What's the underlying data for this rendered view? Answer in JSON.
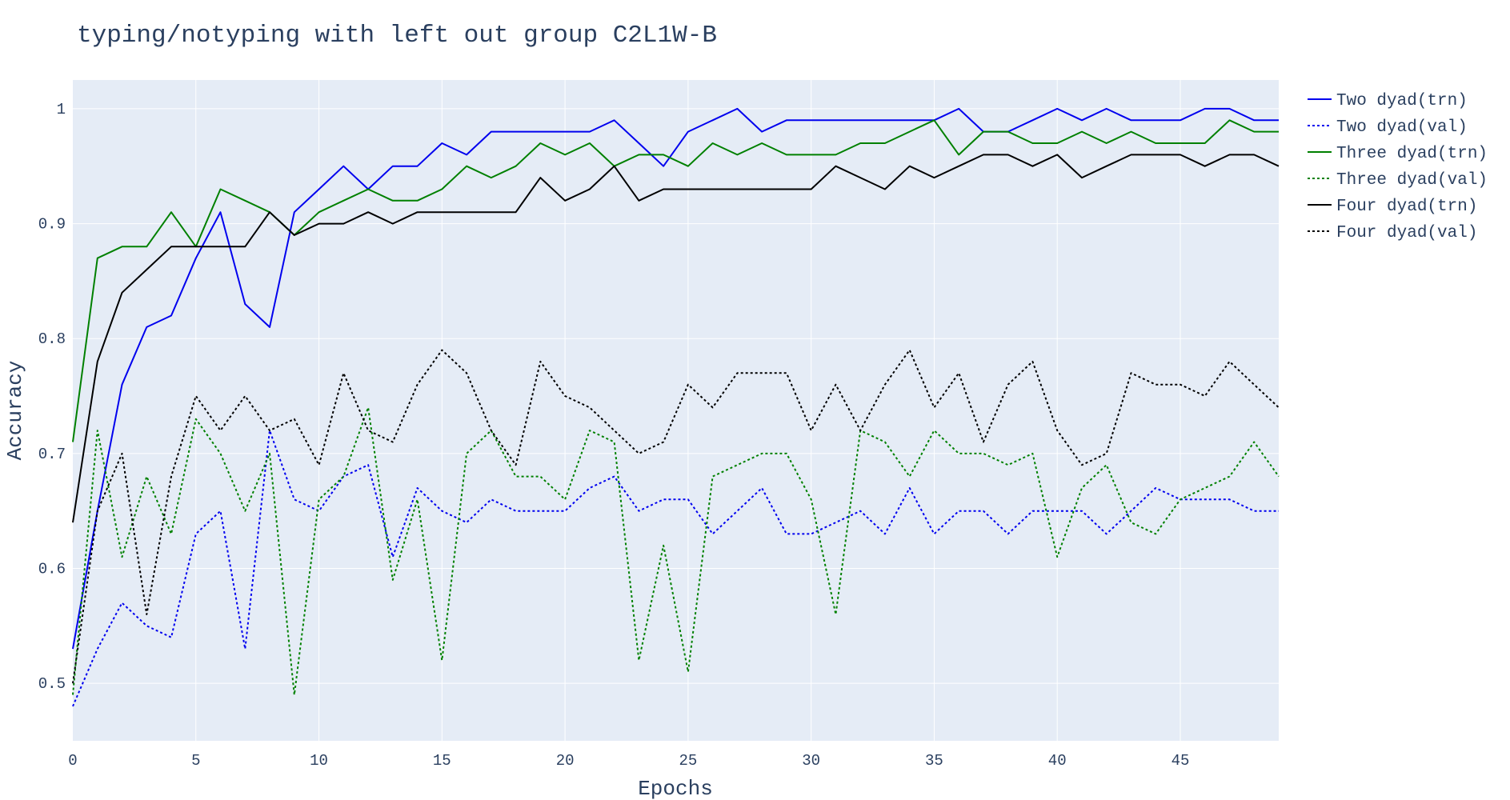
{
  "chart_data": {
    "type": "line",
    "title": "typing/notyping with left out group C2L1W-B",
    "xlabel": "Epochs",
    "ylabel": "Accuracy",
    "xlim": [
      0,
      49
    ],
    "ylim": [
      0.45,
      1.025
    ],
    "xticks": [
      0,
      5,
      10,
      15,
      20,
      25,
      30,
      35,
      40,
      45
    ],
    "xtick_labels": [
      "0",
      "5",
      "10",
      "15",
      "20",
      "25",
      "30",
      "35",
      "40",
      "45"
    ],
    "yticks": [
      0.5,
      0.6,
      0.7,
      0.8,
      0.9,
      1.0
    ],
    "ytick_labels": [
      "0.5",
      "0.6",
      "0.7",
      "0.8",
      "0.9",
      "1"
    ],
    "grid": true,
    "legend_position": "right",
    "plot_background": "#e5ecf6",
    "x": [
      0,
      1,
      2,
      3,
      4,
      5,
      6,
      7,
      8,
      9,
      10,
      11,
      12,
      13,
      14,
      15,
      16,
      17,
      18,
      19,
      20,
      21,
      22,
      23,
      24,
      25,
      26,
      27,
      28,
      29,
      30,
      31,
      32,
      33,
      34,
      35,
      36,
      37,
      38,
      39,
      40,
      41,
      42,
      43,
      44,
      45,
      46,
      47,
      48,
      49
    ],
    "series": [
      {
        "name": "Two dyad(trn)",
        "color": "#0000ee",
        "dash": "solid",
        "values": [
          0.53,
          0.65,
          0.76,
          0.81,
          0.82,
          0.87,
          0.91,
          0.83,
          0.81,
          0.91,
          0.93,
          0.95,
          0.93,
          0.95,
          0.95,
          0.97,
          0.96,
          0.98,
          0.98,
          0.98,
          0.98,
          0.98,
          0.99,
          0.97,
          0.95,
          0.98,
          0.99,
          1.0,
          0.98,
          0.99,
          0.99,
          0.99,
          0.99,
          0.99,
          0.99,
          0.99,
          1.0,
          0.98,
          0.98,
          0.99,
          1.0,
          0.99,
          1.0,
          0.99,
          0.99,
          0.99,
          1.0,
          1.0,
          0.99,
          0.99
        ]
      },
      {
        "name": "Two dyad(val)",
        "color": "#0000ee",
        "dash": "dot",
        "values": [
          0.48,
          0.53,
          0.57,
          0.55,
          0.54,
          0.63,
          0.65,
          0.53,
          0.72,
          0.66,
          0.65,
          0.68,
          0.69,
          0.61,
          0.67,
          0.65,
          0.64,
          0.66,
          0.65,
          0.65,
          0.65,
          0.67,
          0.68,
          0.65,
          0.66,
          0.66,
          0.63,
          0.65,
          0.67,
          0.63,
          0.63,
          0.64,
          0.65,
          0.63,
          0.67,
          0.63,
          0.65,
          0.65,
          0.63,
          0.65,
          0.65,
          0.65,
          0.63,
          0.65,
          0.67,
          0.66,
          0.66,
          0.66,
          0.65,
          0.65
        ]
      },
      {
        "name": "Three dyad(trn)",
        "color": "#008000",
        "dash": "solid",
        "values": [
          0.71,
          0.87,
          0.88,
          0.88,
          0.91,
          0.88,
          0.93,
          0.92,
          0.91,
          0.89,
          0.91,
          0.92,
          0.93,
          0.92,
          0.92,
          0.93,
          0.95,
          0.94,
          0.95,
          0.97,
          0.96,
          0.97,
          0.95,
          0.96,
          0.96,
          0.95,
          0.97,
          0.96,
          0.97,
          0.96,
          0.96,
          0.96,
          0.97,
          0.97,
          0.98,
          0.99,
          0.96,
          0.98,
          0.98,
          0.97,
          0.97,
          0.98,
          0.97,
          0.98,
          0.97,
          0.97,
          0.97,
          0.99,
          0.98,
          0.98
        ]
      },
      {
        "name": "Three dyad(val)",
        "color": "#008000",
        "dash": "dot",
        "values": [
          0.49,
          0.72,
          0.61,
          0.68,
          0.63,
          0.73,
          0.7,
          0.65,
          0.7,
          0.49,
          0.66,
          0.68,
          0.74,
          0.59,
          0.66,
          0.52,
          0.7,
          0.72,
          0.68,
          0.68,
          0.66,
          0.72,
          0.71,
          0.52,
          0.62,
          0.51,
          0.68,
          0.69,
          0.7,
          0.7,
          0.66,
          0.56,
          0.72,
          0.71,
          0.68,
          0.72,
          0.7,
          0.7,
          0.69,
          0.7,
          0.61,
          0.67,
          0.69,
          0.64,
          0.63,
          0.66,
          0.67,
          0.68,
          0.71,
          0.68
        ]
      },
      {
        "name": "Four dyad(trn)",
        "color": "#000000",
        "dash": "solid",
        "values": [
          0.64,
          0.78,
          0.84,
          0.86,
          0.88,
          0.88,
          0.88,
          0.88,
          0.91,
          0.89,
          0.9,
          0.9,
          0.91,
          0.9,
          0.91,
          0.91,
          0.91,
          0.91,
          0.91,
          0.94,
          0.92,
          0.93,
          0.95,
          0.92,
          0.93,
          0.93,
          0.93,
          0.93,
          0.93,
          0.93,
          0.93,
          0.95,
          0.94,
          0.93,
          0.95,
          0.94,
          0.95,
          0.96,
          0.96,
          0.95,
          0.96,
          0.94,
          0.95,
          0.96,
          0.96,
          0.96,
          0.95,
          0.96,
          0.96,
          0.95
        ]
      },
      {
        "name": "Four dyad(val)",
        "color": "#000000",
        "dash": "dot",
        "values": [
          0.5,
          0.65,
          0.7,
          0.56,
          0.68,
          0.75,
          0.72,
          0.75,
          0.72,
          0.73,
          0.69,
          0.77,
          0.72,
          0.71,
          0.76,
          0.79,
          0.77,
          0.72,
          0.69,
          0.78,
          0.75,
          0.74,
          0.72,
          0.7,
          0.71,
          0.76,
          0.74,
          0.77,
          0.77,
          0.77,
          0.72,
          0.76,
          0.72,
          0.76,
          0.79,
          0.74,
          0.77,
          0.71,
          0.76,
          0.78,
          0.72,
          0.69,
          0.7,
          0.77,
          0.76,
          0.76,
          0.75,
          0.78,
          0.76,
          0.74
        ]
      }
    ]
  }
}
